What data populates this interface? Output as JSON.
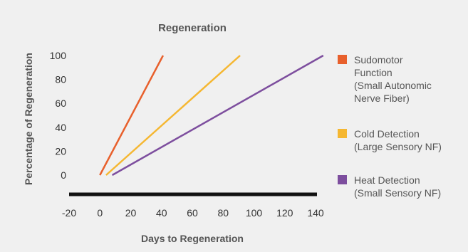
{
  "chart_data": {
    "type": "line",
    "title": "Regeneration",
    "xlabel": "Days to Regeneration",
    "ylabel": "Percentage of Regeneration",
    "xlim": [
      -20,
      140
    ],
    "ylim": [
      0,
      100
    ],
    "x_ticks": [
      -20,
      0,
      20,
      40,
      60,
      80,
      100,
      120,
      140
    ],
    "y_ticks": [
      0,
      20,
      40,
      60,
      80,
      100
    ],
    "grid": false,
    "legend_position": "right",
    "series": [
      {
        "name_lines": [
          "Sudomotor",
          "Function",
          "(Small Autonomic",
          "Nerve Fiber)"
        ],
        "color": "#e8602c",
        "points": [
          [
            0,
            0
          ],
          [
            41,
            100
          ]
        ]
      },
      {
        "name_lines": [
          "Cold Detection",
          "(Large Sensory NF)"
        ],
        "color": "#f5b731",
        "points": [
          [
            4,
            0
          ],
          [
            91,
            100
          ]
        ]
      },
      {
        "name_lines": [
          "Heat Detection",
          "(Small Sensory NF)"
        ],
        "color": "#7d4e9e",
        "points": [
          [
            8,
            0
          ],
          [
            145,
            100
          ]
        ]
      }
    ]
  }
}
